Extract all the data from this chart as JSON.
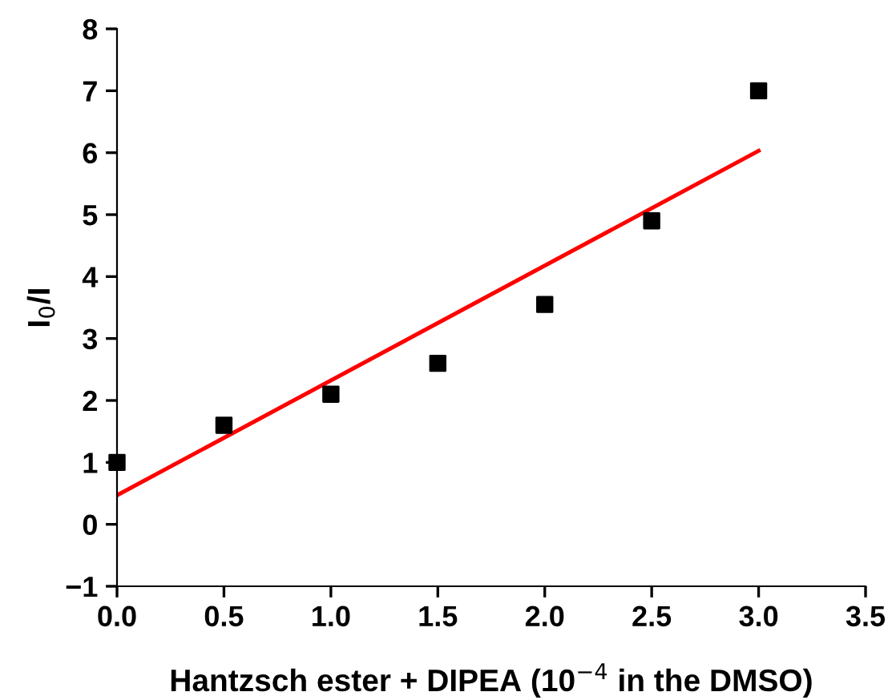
{
  "chart_data": {
    "type": "scatter",
    "xlabel": "Hantzsch ester + DIPEA (10$^{−4}$ in the DMSO)",
    "ylabel": "I$_{0}$/I",
    "xlim": [
      0,
      3.5
    ],
    "xticks": [
      {
        "value": 0,
        "label": "0.0"
      },
      0.5,
      {
        "value": 1,
        "label": "1.0"
      },
      1.5,
      {
        "value": 2,
        "label": "2.0"
      },
      2.5,
      {
        "value": 3,
        "label": "3.0"
      },
      3.5
    ],
    "ylim": [
      -1,
      8
    ],
    "yticks": [
      {
        "value": -1,
        "label": "−1"
      },
      0,
      1,
      2,
      3,
      4,
      5,
      6,
      7,
      8
    ],
    "grid": false,
    "legend": false,
    "series": [
      {
        "color": "#000000",
        "marker": "square",
        "x": [
          0,
          0.5,
          1,
          1.5,
          2,
          2.5,
          3
        ],
        "values": [
          1.0,
          1.6,
          2.1,
          2.6,
          3.55,
          4.9,
          7.0
        ]
      },
      {
        "type": "line",
        "color": "#ff0000",
        "marker": "none",
        "line_style": "solid",
        "x": [
          0,
          3
        ],
        "values": [
          0.47,
          6.03
        ]
      }
    ]
  }
}
